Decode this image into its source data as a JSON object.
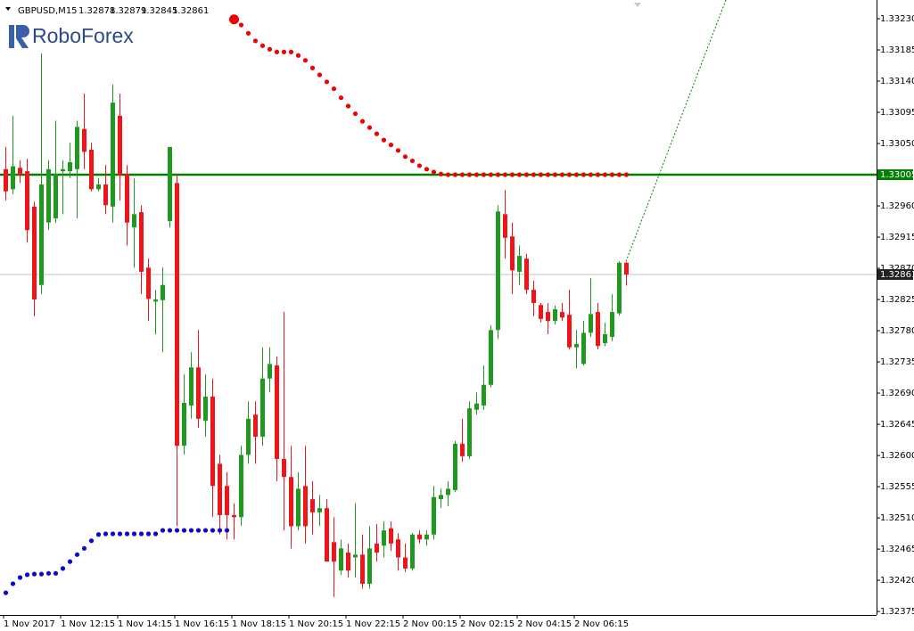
{
  "chart_data": {
    "type": "candlestick",
    "symbol": "GBPUSD,M15",
    "logo": "RoboForex",
    "up_color": "#1f9a1f",
    "down_color": "#f01418",
    "categories": [
      "1 Nov 2017",
      null,
      null,
      null,
      null,
      null,
      null,
      null,
      "1 Nov 12:15",
      null,
      null,
      null,
      null,
      null,
      null,
      null,
      "1 Nov 14:15",
      null,
      null,
      null,
      null,
      null,
      null,
      null,
      "1 Nov 16:15",
      null,
      null,
      null,
      null,
      null,
      null,
      null,
      "1 Nov 18:15",
      null,
      null,
      null,
      null,
      null,
      null,
      null,
      "1 Nov 20:15",
      null,
      null,
      null,
      null,
      null,
      null,
      null,
      "1 Nov 22:15",
      null,
      null,
      null,
      null,
      null,
      null,
      null,
      "2 Nov 00:15",
      null,
      null,
      null,
      null,
      null,
      null,
      null,
      "2 Nov 02:15",
      null,
      null,
      null,
      null,
      null,
      null,
      null,
      "2 Nov 04:15",
      null,
      null,
      null,
      null,
      null,
      null,
      null,
      "2 Nov 06:15",
      null,
      null,
      null,
      null,
      null,
      null,
      null
    ],
    "open": [
      1.33013,
      1.32984,
      1.33015,
      1.3301,
      1.32959,
      1.32846,
      1.32936,
      1.32942,
      1.3301,
      1.3301,
      1.33013,
      1.33071,
      1.33041,
      1.32984,
      1.32991,
      1.32959,
      1.3309,
      1.33006,
      1.32929,
      1.32951,
      1.32871,
      1.32822,
      1.32824,
      1.32938,
      1.32993,
      1.32614,
      1.32672,
      1.32727,
      1.3265,
      1.32685,
      1.32588,
      1.32556,
      1.32514,
      1.32511,
      1.32601,
      1.32659,
      1.32627,
      1.32711,
      1.3273,
      1.32595,
      1.32569,
      1.32498,
      1.32556,
      1.32537,
      1.32518,
      1.32524,
      1.32475,
      1.32434,
      1.3246,
      1.32453,
      1.32457,
      1.32415,
      1.32473,
      1.3247,
      1.32495,
      1.32479,
      1.32453,
      1.32437,
      1.32486,
      1.32479,
      1.32486,
      1.32537,
      1.32543,
      1.3255,
      1.32617,
      1.32599,
      1.32666,
      1.32672,
      1.32702,
      1.32781,
      1.32948,
      1.32916,
      1.32865,
      1.32884,
      1.32839,
      1.32817,
      1.32807,
      1.32794,
      1.32807,
      1.32803,
      1.32756,
      1.32732,
      1.32777,
      1.32807,
      1.32762,
      1.32771,
      1.32805,
      1.32878
    ],
    "high": [
      1.33045,
      1.3309,
      1.33026,
      1.33028,
      1.32966,
      1.3318,
      1.33026,
      1.33083,
      1.33026,
      1.33051,
      1.33083,
      1.33122,
      1.33051,
      1.33,
      1.33019,
      1.33135,
      1.33122,
      1.33019,
      1.33,
      1.32961,
      1.32884,
      1.32839,
      1.32871,
      1.33045,
      1.33006,
      1.32717,
      1.32749,
      1.32781,
      1.32717,
      1.32711,
      1.32601,
      1.32576,
      1.32531,
      1.32614,
      1.32678,
      1.32678,
      1.32756,
      1.32756,
      1.32743,
      1.32807,
      1.32614,
      1.32576,
      1.32614,
      1.32563,
      1.32543,
      1.32537,
      1.32511,
      1.32479,
      1.32473,
      1.32531,
      1.32486,
      1.32498,
      1.32501,
      1.32505,
      1.32505,
      1.32488,
      1.32473,
      1.32488,
      1.32492,
      1.32492,
      1.32556,
      1.32552,
      1.32563,
      1.32621,
      1.32653,
      1.32678,
      1.32691,
      1.3273,
      1.32788,
      1.32961,
      1.32983,
      1.32936,
      1.32903,
      1.32891,
      1.32852,
      1.3282,
      1.3282,
      1.32816,
      1.3282,
      1.32839,
      1.32781,
      1.32794,
      1.32856,
      1.3282,
      1.32792,
      1.32833,
      1.3288,
      1.32879
    ],
    "low": [
      1.32968,
      1.32977,
      1.32993,
      1.32907,
      1.32801,
      1.32833,
      1.32925,
      1.32936,
      1.32948,
      1.33,
      1.32942,
      1.33013,
      1.32981,
      1.32981,
      1.32948,
      1.32936,
      1.32968,
      1.32903,
      1.32871,
      1.32833,
      1.32794,
      1.32775,
      1.32749,
      1.32929,
      1.32498,
      1.32601,
      1.32653,
      1.3264,
      1.32627,
      1.32511,
      1.32486,
      1.32479,
      1.32479,
      1.32498,
      1.32588,
      1.32588,
      1.32614,
      1.32691,
      1.32563,
      1.32492,
      1.32466,
      1.32492,
      1.32473,
      1.32486,
      1.32498,
      1.32447,
      1.32396,
      1.32428,
      1.32424,
      1.32424,
      1.32408,
      1.32408,
      1.32447,
      1.32453,
      1.32462,
      1.32434,
      1.32432,
      1.32434,
      1.32473,
      1.3247,
      1.32479,
      1.32524,
      1.32527,
      1.32547,
      1.32591,
      1.32595,
      1.32659,
      1.32666,
      1.32698,
      1.32768,
      1.32884,
      1.32833,
      1.32846,
      1.32833,
      1.32801,
      1.32792,
      1.32775,
      1.32789,
      1.32794,
      1.32753,
      1.32726,
      1.3273,
      1.32771,
      1.32753,
      1.32758,
      1.32765,
      1.32802,
      1.32845
    ],
    "close": [
      1.32981,
      1.33017,
      1.33005,
      1.32925,
      1.32825,
      1.32991,
      1.33013,
      1.33006,
      1.33013,
      1.33023,
      1.33074,
      1.33038,
      1.32984,
      1.32991,
      1.32961,
      1.33109,
      1.33004,
      1.32936,
      1.32948,
      1.32865,
      1.32826,
      1.32825,
      1.32846,
      1.33045,
      1.32614,
      1.32676,
      1.32727,
      1.32653,
      1.32685,
      1.32556,
      1.32514,
      1.32514,
      1.32511,
      1.32601,
      1.32653,
      1.32627,
      1.32711,
      1.32732,
      1.32595,
      1.32569,
      1.32498,
      1.32552,
      1.32498,
      1.32518,
      1.32524,
      1.32447,
      1.32447,
      1.32466,
      1.32434,
      1.32457,
      1.32415,
      1.32466,
      1.3246,
      1.32492,
      1.32473,
      1.32453,
      1.32437,
      1.32486,
      1.32479,
      1.32486,
      1.3254,
      1.32543,
      1.32552,
      1.32617,
      1.32599,
      1.32668,
      1.32675,
      1.32702,
      1.32781,
      1.32952,
      1.32914,
      1.32867,
      1.32888,
      1.32839,
      1.3282,
      1.32797,
      1.32794,
      1.32811,
      1.32799,
      1.32756,
      1.32761,
      1.32777,
      1.32804,
      1.32758,
      1.32775,
      1.32807,
      1.32878,
      1.32861
    ],
    "indicators": [
      {
        "color": "#0a0ad8",
        "values": [
          1.32402,
          1.32415,
          1.32424,
          1.32428,
          1.32429,
          1.32429,
          1.3243,
          1.3243,
          1.32437,
          1.32447,
          1.32457,
          1.32466,
          1.32477,
          1.32486,
          1.32487,
          1.32487,
          1.32487,
          1.32487,
          1.32487,
          1.32487,
          1.32487,
          1.32487,
          1.32492,
          1.32492,
          1.32492,
          1.32492,
          1.32492,
          1.32492,
          1.32492,
          1.32492,
          1.32492,
          1.32492,
          null,
          null,
          null,
          null,
          null,
          null,
          null,
          null,
          null,
          null,
          null,
          null,
          null,
          null,
          null,
          null,
          null,
          null,
          null,
          null,
          null,
          null,
          null,
          null,
          null,
          null,
          null,
          null,
          null,
          null,
          null,
          null,
          null,
          null,
          null,
          null,
          null,
          null,
          null,
          null,
          null,
          null,
          null,
          null,
          null,
          null,
          null,
          null,
          null,
          null,
          null,
          null,
          null,
          null,
          null,
          null
        ]
      },
      {
        "color": "#f00000",
        "values": [
          null,
          null,
          null,
          null,
          null,
          null,
          null,
          null,
          null,
          null,
          null,
          null,
          null,
          null,
          null,
          null,
          null,
          null,
          null,
          null,
          null,
          null,
          null,
          null,
          null,
          null,
          null,
          null,
          null,
          null,
          null,
          null,
          1.33229,
          1.33221,
          1.33209,
          1.33198,
          1.33191,
          1.33186,
          1.33182,
          1.33182,
          1.33182,
          1.33177,
          1.3317,
          1.33159,
          1.33149,
          1.33139,
          1.33129,
          1.33116,
          1.33104,
          1.33093,
          1.33082,
          1.33073,
          1.33064,
          1.33055,
          1.33048,
          1.3304,
          1.33031,
          1.33025,
          1.33018,
          1.33013,
          1.33009,
          1.33006,
          1.33005,
          1.33005,
          1.33005,
          1.33005,
          1.33005,
          1.33005,
          1.33005,
          1.33005,
          1.33005,
          1.33005,
          1.33005,
          1.33005,
          1.33005,
          1.33005,
          1.33005,
          1.33005,
          1.33005,
          1.33005,
          1.33005,
          1.33005,
          1.33005,
          1.33005,
          1.33005,
          1.33005,
          1.33005,
          1.33005
        ]
      }
    ],
    "level": 1.33005,
    "level_color": "#008000",
    "trendline": {
      "color": "#008000",
      "x": [
        87,
        101
      ],
      "y": [
        1.3288,
        1.33257
      ]
    },
    "ylim": [
      1.3237,
      1.33257
    ],
    "yticks": [
      {
        "value": 1.3323,
        "label": "1.33230"
      },
      {
        "value": 1.33185,
        "label": "1.33185"
      },
      {
        "value": 1.3314,
        "label": "1.33140"
      },
      {
        "value": 1.33095,
        "label": "1.33095"
      },
      {
        "value": 1.3305,
        "label": "1.33050"
      },
      {
        "value": 1.33005,
        "label": "1.33005"
      },
      {
        "value": 1.3296,
        "label": "1.32960"
      },
      {
        "value": 1.32915,
        "label": "1.32915"
      },
      {
        "value": 1.3287,
        "label": "1.32870"
      },
      {
        "value": 1.32825,
        "label": "1.32825"
      },
      {
        "value": 1.3278,
        "label": "1.32780"
      },
      {
        "value": 1.32735,
        "label": "1.32735"
      },
      {
        "value": 1.3269,
        "label": "1.32690"
      },
      {
        "value": 1.32645,
        "label": "1.32645"
      },
      {
        "value": 1.326,
        "label": "1.32600"
      },
      {
        "value": 1.32555,
        "label": "1.32555"
      },
      {
        "value": 1.3251,
        "label": "1.32510"
      },
      {
        "value": 1.32465,
        "label": "1.32465"
      },
      {
        "value": 1.3242,
        "label": "1.32420"
      },
      {
        "value": 1.32375,
        "label": "1.32375"
      }
    ]
  }
}
